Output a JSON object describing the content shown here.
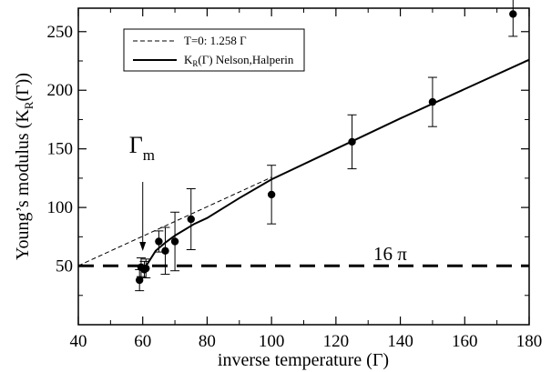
{
  "chart_data": {
    "type": "scatter",
    "xlabel": "inverse temperature (Γ)",
    "ylabel_main": "Young’s modulus (K",
    "ylabel_sub": "R",
    "ylabel_end": "(Γ))",
    "xlim": [
      40,
      180
    ],
    "ylim": [
      0,
      270
    ],
    "x_ticks": [
      40,
      60,
      80,
      100,
      120,
      140,
      160,
      180
    ],
    "y_ticks": [
      50,
      100,
      150,
      200,
      250
    ],
    "grid": false,
    "legend_position": "top-left",
    "legend": [
      {
        "label": "T=0: 1.258 Γ",
        "style": "dashed"
      },
      {
        "label_main": "K",
        "label_sub": "R",
        "label_end": "(Γ) Nelson,Halperin",
        "style": "solid"
      }
    ],
    "points": [
      {
        "x": 59,
        "y": 38,
        "err": 9
      },
      {
        "x": 59.5,
        "y": 49,
        "err": 8
      },
      {
        "x": 60.5,
        "y": 47,
        "err": 7
      },
      {
        "x": 61,
        "y": 48,
        "err": 8
      },
      {
        "x": 65,
        "y": 71,
        "err": 9
      },
      {
        "x": 67,
        "y": 63,
        "err": 20
      },
      {
        "x": 70,
        "y": 71,
        "err": 25
      },
      {
        "x": 75,
        "y": 90,
        "err": 26
      },
      {
        "x": 100,
        "y": 111,
        "err": 25
      },
      {
        "x": 125,
        "y": 156,
        "err": 23
      },
      {
        "x": 150,
        "y": 190,
        "err": 21
      },
      {
        "x": 175,
        "y": 265,
        "err": 19
      }
    ],
    "t0_line": {
      "slope": 1.258,
      "x": [
        40,
        100
      ]
    },
    "nelson_halperin_curve": {
      "x": [
        61,
        64,
        67,
        70,
        73,
        76,
        80,
        90,
        100,
        120,
        140,
        160,
        180
      ],
      "y": [
        50,
        63,
        70,
        76,
        81,
        86,
        91,
        108,
        124,
        150,
        176,
        201,
        226
      ]
    },
    "reference_line": {
      "y": 50.27,
      "label": "16 π"
    },
    "annotation": {
      "label_main": "Γ",
      "label_sub": "m",
      "x": 60
    }
  }
}
